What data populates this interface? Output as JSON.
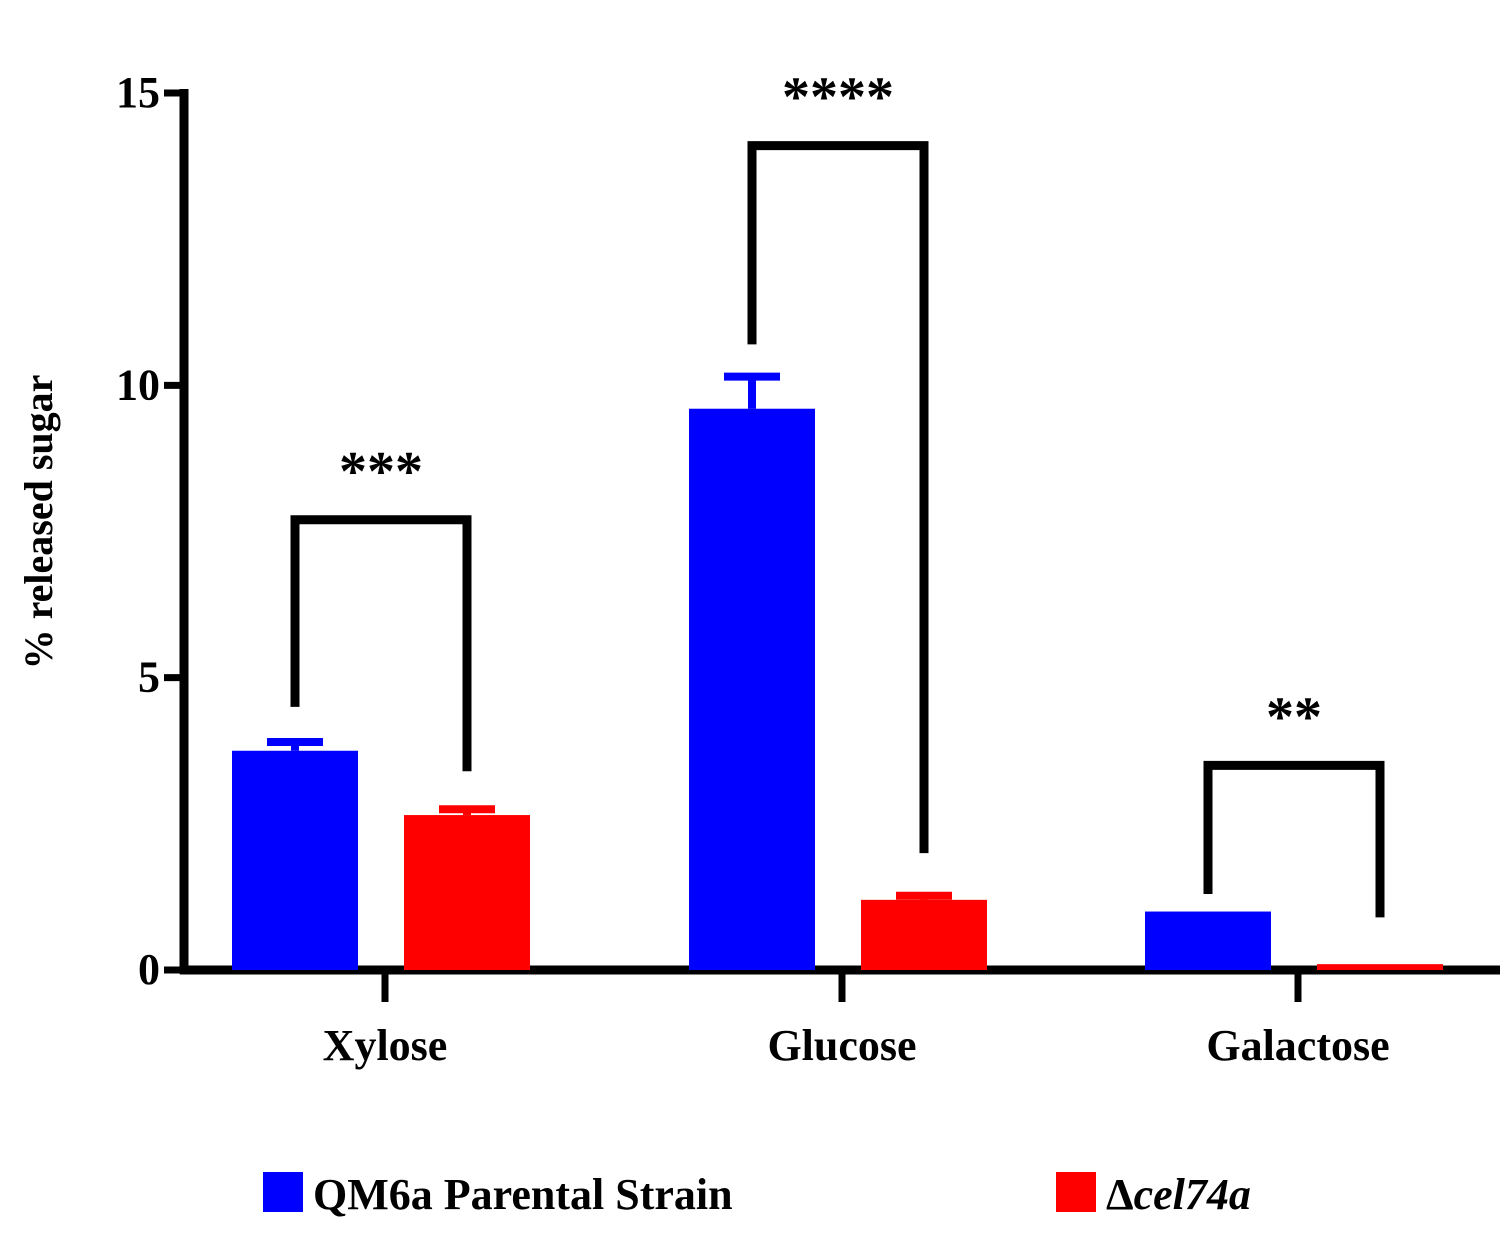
{
  "chart_data": {
    "type": "bar",
    "title": "",
    "xlabel": "",
    "ylabel": "% released sugar",
    "ylim": [
      0,
      15
    ],
    "yticks": [
      "0",
      "5",
      "10",
      "15"
    ],
    "categories": [
      "Xylose",
      "Glucose",
      "Galactose"
    ],
    "series": [
      {
        "name": "QM6a Parental Strain",
        "color": "#0000ff",
        "values": [
          3.75,
          9.6,
          1.0
        ],
        "errors": [
          0.15,
          0.55,
          0.0
        ]
      },
      {
        "name": "Δcel74a",
        "color": "#ff0000",
        "values": [
          2.65,
          1.2,
          0.1
        ],
        "errors": [
          0.1,
          0.07,
          0.0
        ]
      }
    ],
    "annotations": [
      {
        "category": "Xylose",
        "label": "***"
      },
      {
        "category": "Glucose",
        "label": "****"
      },
      {
        "category": "Galactose",
        "label": "**"
      }
    ],
    "legend": {
      "position": "bottom",
      "items": [
        {
          "label": "QM6a Parental Strain",
          "color": "#0000ff",
          "italic": false
        },
        {
          "label_prefix": "Δ",
          "label": "cel74a",
          "color": "#ff0000",
          "italic": true
        }
      ]
    }
  }
}
